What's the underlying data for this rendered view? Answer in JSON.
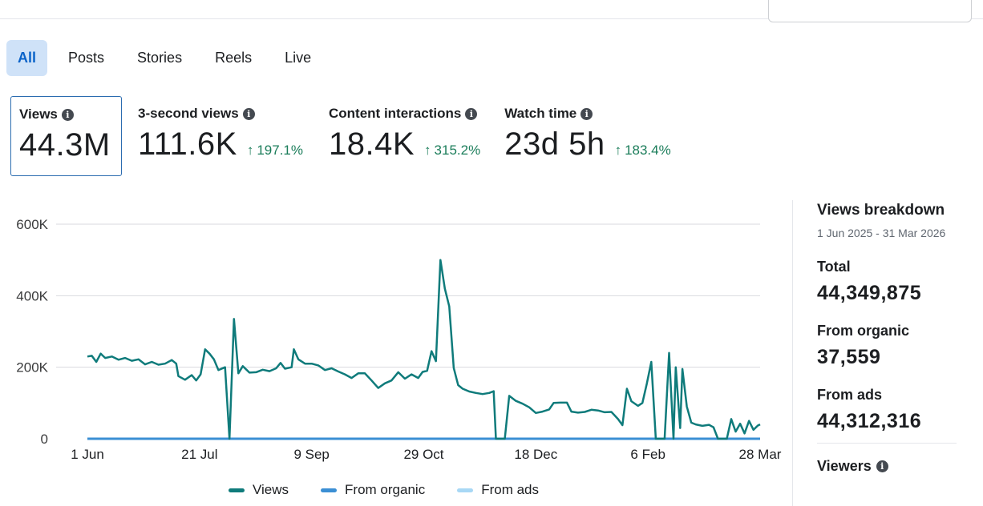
{
  "tabs": [
    "All",
    "Posts",
    "Stories",
    "Reels",
    "Live"
  ],
  "active_tab": "All",
  "metrics": [
    {
      "label": "Views",
      "value": "44.3M",
      "change": ""
    },
    {
      "label": "3-second views",
      "value": "111.6K",
      "change": "197.1%"
    },
    {
      "label": "Content interactions",
      "value": "18.4K",
      "change": "315.2%"
    },
    {
      "label": "Watch time",
      "value": "23d 5h",
      "change": "183.4%"
    }
  ],
  "breakdown": {
    "title": "Views breakdown",
    "range": "1 Jun 2025 - 31 Mar 2026",
    "total_label": "Total",
    "total_value": "44,349,875",
    "organic_label": "From organic",
    "organic_value": "37,559",
    "ads_label": "From ads",
    "ads_value": "44,312,316",
    "viewers_label": "Viewers"
  },
  "legend": [
    "Views",
    "From organic",
    "From ads"
  ],
  "colors": {
    "views": "#0f7b7b",
    "organic": "#3b8fd4",
    "ads": "#a8d8f5",
    "accent": "#0a63c9",
    "positive": "#1b7d5a"
  },
  "chart_data": {
    "type": "line",
    "title": "",
    "xlabel": "",
    "ylabel": "",
    "ylim": [
      0,
      600000
    ],
    "yticks": [
      "0",
      "200K",
      "400K",
      "600K"
    ],
    "xticks": [
      "1 Jun",
      "21 Jul",
      "9 Sep",
      "29 Oct",
      "18 Dec",
      "6 Feb",
      "28 Mar"
    ],
    "x_start": "2025-06-01",
    "x_end": "2026-03-31",
    "grid": true,
    "legend_position": "bottom",
    "series": [
      {
        "name": "Views",
        "points": [
          [
            "2025-06-01",
            230000
          ],
          [
            "2025-06-03",
            232000
          ],
          [
            "2025-06-05",
            215000
          ],
          [
            "2025-06-07",
            238000
          ],
          [
            "2025-06-09",
            226000
          ],
          [
            "2025-06-12",
            230000
          ],
          [
            "2025-06-15",
            221000
          ],
          [
            "2025-06-18",
            226000
          ],
          [
            "2025-06-21",
            218000
          ],
          [
            "2025-06-24",
            222000
          ],
          [
            "2025-06-27",
            208000
          ],
          [
            "2025-06-30",
            215000
          ],
          [
            "2025-07-03",
            207000
          ],
          [
            "2025-07-06",
            210000
          ],
          [
            "2025-07-09",
            220000
          ],
          [
            "2025-07-11",
            210000
          ],
          [
            "2025-07-12",
            175000
          ],
          [
            "2025-07-15",
            165000
          ],
          [
            "2025-07-18",
            178000
          ],
          [
            "2025-07-20",
            163000
          ],
          [
            "2025-07-22",
            180000
          ],
          [
            "2025-07-24",
            250000
          ],
          [
            "2025-07-26",
            238000
          ],
          [
            "2025-07-28",
            222000
          ],
          [
            "2025-07-30",
            192000
          ],
          [
            "2025-08-02",
            200000
          ],
          [
            "2025-08-04",
            0
          ],
          [
            "2025-08-06",
            335000
          ],
          [
            "2025-08-08",
            183000
          ],
          [
            "2025-08-10",
            203000
          ],
          [
            "2025-08-13",
            185000
          ],
          [
            "2025-08-16",
            186000
          ],
          [
            "2025-08-19",
            193000
          ],
          [
            "2025-08-22",
            189000
          ],
          [
            "2025-08-25",
            197000
          ],
          [
            "2025-08-27",
            212000
          ],
          [
            "2025-08-29",
            196000
          ],
          [
            "2025-09-01",
            200000
          ],
          [
            "2025-09-02",
            250000
          ],
          [
            "2025-09-04",
            222000
          ],
          [
            "2025-09-07",
            210000
          ],
          [
            "2025-09-10",
            210000
          ],
          [
            "2025-09-13",
            205000
          ],
          [
            "2025-09-16",
            192000
          ],
          [
            "2025-09-19",
            197000
          ],
          [
            "2025-09-22",
            188000
          ],
          [
            "2025-09-25",
            180000
          ],
          [
            "2025-09-28",
            170000
          ],
          [
            "2025-10-01",
            183000
          ],
          [
            "2025-10-04",
            183000
          ],
          [
            "2025-10-07",
            163000
          ],
          [
            "2025-10-10",
            142000
          ],
          [
            "2025-10-13",
            155000
          ],
          [
            "2025-10-16",
            163000
          ],
          [
            "2025-10-19",
            186000
          ],
          [
            "2025-10-22",
            168000
          ],
          [
            "2025-10-25",
            180000
          ],
          [
            "2025-10-28",
            170000
          ],
          [
            "2025-10-30",
            187000
          ],
          [
            "2025-11-01",
            190000
          ],
          [
            "2025-11-03",
            245000
          ],
          [
            "2025-11-05",
            217000
          ],
          [
            "2025-11-07",
            500000
          ],
          [
            "2025-11-09",
            420000
          ],
          [
            "2025-11-11",
            370000
          ],
          [
            "2025-11-13",
            198000
          ],
          [
            "2025-11-15",
            150000
          ],
          [
            "2025-11-17",
            140000
          ],
          [
            "2025-11-20",
            132000
          ],
          [
            "2025-11-23",
            128000
          ],
          [
            "2025-11-26",
            125000
          ],
          [
            "2025-11-29",
            128000
          ],
          [
            "2025-12-01",
            133000
          ],
          [
            "2025-12-02",
            0
          ],
          [
            "2025-12-06",
            0
          ],
          [
            "2025-12-08",
            120000
          ],
          [
            "2025-12-11",
            106000
          ],
          [
            "2025-12-14",
            98000
          ],
          [
            "2025-12-17",
            88000
          ],
          [
            "2025-12-20",
            72000
          ],
          [
            "2025-12-23",
            76000
          ],
          [
            "2025-12-26",
            82000
          ],
          [
            "2025-12-28",
            100000
          ],
          [
            "2025-12-31",
            101000
          ],
          [
            "2026-01-03",
            101000
          ],
          [
            "2026-01-05",
            76000
          ],
          [
            "2026-01-08",
            73000
          ],
          [
            "2026-01-11",
            75000
          ],
          [
            "2026-01-14",
            81000
          ],
          [
            "2026-01-17",
            79000
          ],
          [
            "2026-01-20",
            74000
          ],
          [
            "2026-01-23",
            75000
          ],
          [
            "2026-01-26",
            55000
          ],
          [
            "2026-01-28",
            38000
          ],
          [
            "2026-01-30",
            140000
          ],
          [
            "2026-02-01",
            105000
          ],
          [
            "2026-02-04",
            92000
          ],
          [
            "2026-02-06",
            100000
          ],
          [
            "2026-02-08",
            155000
          ],
          [
            "2026-02-10",
            215000
          ],
          [
            "2026-02-12",
            0
          ],
          [
            "2026-02-16",
            0
          ],
          [
            "2026-02-18",
            240000
          ],
          [
            "2026-02-20",
            0
          ],
          [
            "2026-02-21",
            200000
          ],
          [
            "2026-02-23",
            30000
          ],
          [
            "2026-02-24",
            195000
          ],
          [
            "2026-02-26",
            90000
          ],
          [
            "2026-02-28",
            45000
          ],
          [
            "2026-03-02",
            40000
          ],
          [
            "2026-03-05",
            36000
          ],
          [
            "2026-03-08",
            39000
          ],
          [
            "2026-03-10",
            32000
          ],
          [
            "2026-03-12",
            0
          ],
          [
            "2026-03-16",
            0
          ],
          [
            "2026-03-18",
            55000
          ],
          [
            "2026-03-20",
            20000
          ],
          [
            "2026-03-22",
            42000
          ],
          [
            "2026-03-24",
            15000
          ],
          [
            "2026-03-26",
            50000
          ],
          [
            "2026-03-28",
            25000
          ],
          [
            "2026-03-30",
            37000
          ],
          [
            "2026-03-31",
            40000
          ]
        ]
      },
      {
        "name": "From organic",
        "points": [
          [
            "2025-06-01",
            0
          ],
          [
            "2026-03-31",
            0
          ]
        ]
      },
      {
        "name": "From ads",
        "points": [
          [
            "2025-06-01",
            0
          ],
          [
            "2026-03-31",
            0
          ]
        ]
      }
    ]
  }
}
